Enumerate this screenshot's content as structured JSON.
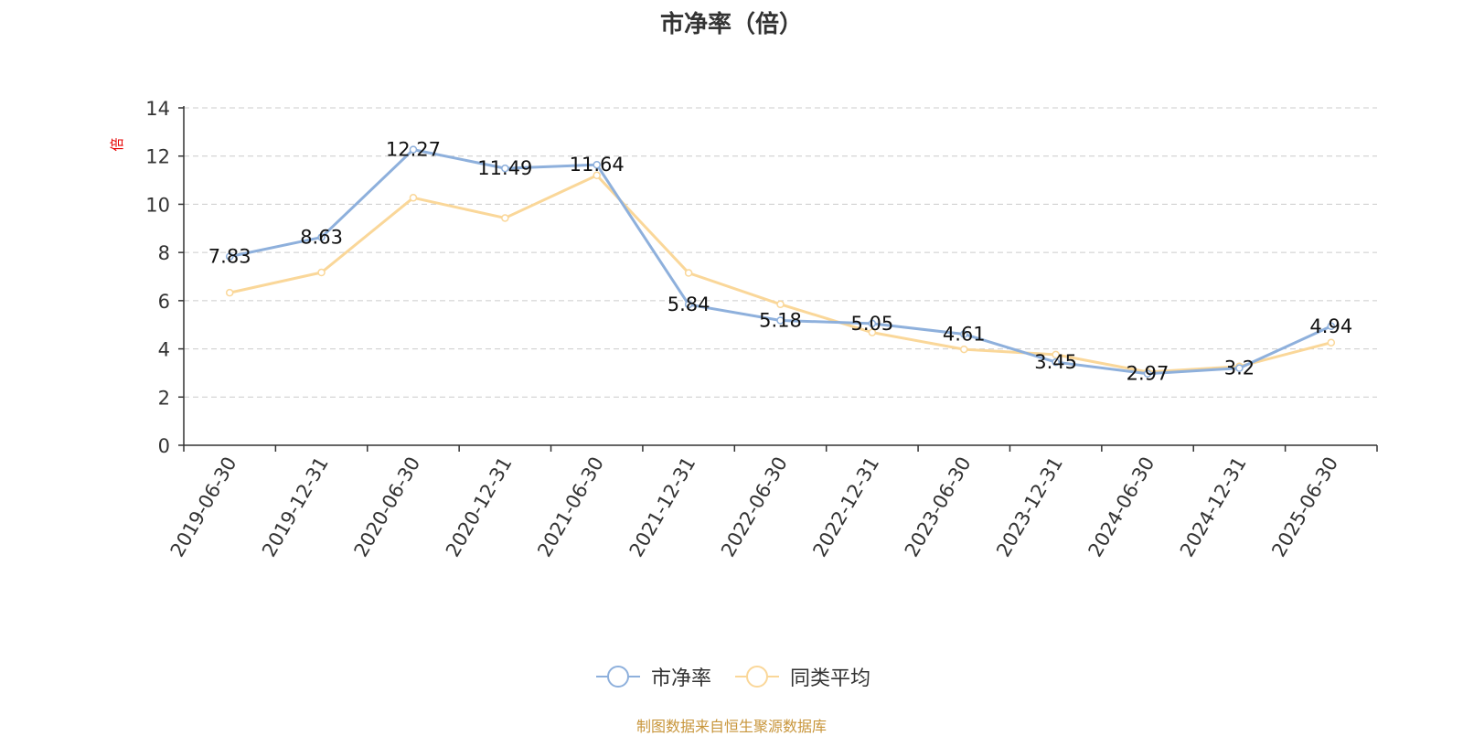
{
  "chart_data": {
    "type": "line",
    "title": "市净率（倍）",
    "ylabel": "倍",
    "x": [
      "2019-06-30",
      "2019-12-31",
      "2020-06-30",
      "2020-12-31",
      "2021-06-30",
      "2021-12-31",
      "2022-06-30",
      "2022-12-31",
      "2023-06-30",
      "2023-12-31",
      "2024-06-30",
      "2024-12-31",
      "2025-06-30"
    ],
    "ylim": [
      0,
      14
    ],
    "yticks": [
      0,
      2,
      4,
      6,
      8,
      10,
      12,
      14
    ],
    "grid": true,
    "legend_position": "bottom",
    "series": [
      {
        "name": "市净率",
        "color": "#8eb0dc",
        "values": [
          7.83,
          8.63,
          12.27,
          11.49,
          11.64,
          5.84,
          5.18,
          5.05,
          4.61,
          3.45,
          2.97,
          3.2,
          4.94
        ],
        "data_labels": [
          "7.83",
          "8.63",
          "12.27",
          "11.49",
          "11.64",
          "5.84",
          "5.18",
          "5.05",
          "4.61",
          "3.45",
          "2.97",
          "3.2",
          "4.94"
        ]
      },
      {
        "name": "同类平均",
        "color": "#fad799",
        "values": [
          6.33,
          7.17,
          10.27,
          9.43,
          11.2,
          7.15,
          5.85,
          4.68,
          3.98,
          3.76,
          3.04,
          3.27,
          4.26
        ]
      }
    ]
  },
  "source_note": "制图数据来自恒生聚源数据库"
}
